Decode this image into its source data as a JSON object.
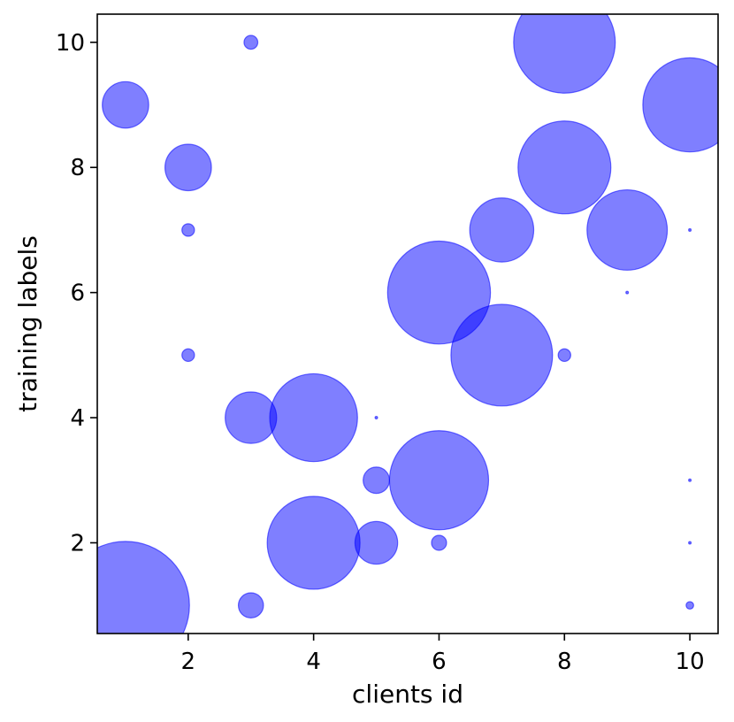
{
  "chart_data": {
    "type": "scatter",
    "xlabel": "clients id",
    "ylabel": "training labels",
    "xlim": [
      0.55,
      10.45
    ],
    "ylim": [
      0.55,
      10.45
    ],
    "xticks": [
      2,
      4,
      6,
      8,
      10
    ],
    "yticks": [
      2,
      4,
      6,
      8,
      10
    ],
    "grid": false,
    "marker_color": "#0000ff",
    "marker_alpha": 0.5,
    "points": [
      {
        "x": 1,
        "y": 1,
        "size": 102
      },
      {
        "x": 1,
        "y": 9,
        "size": 37
      },
      {
        "x": 2,
        "y": 8,
        "size": 37
      },
      {
        "x": 2,
        "y": 7,
        "size": 10
      },
      {
        "x": 2,
        "y": 5,
        "size": 10
      },
      {
        "x": 3,
        "y": 10,
        "size": 11
      },
      {
        "x": 3,
        "y": 4,
        "size": 41
      },
      {
        "x": 3,
        "y": 1,
        "size": 20
      },
      {
        "x": 4,
        "y": 4,
        "size": 70
      },
      {
        "x": 4,
        "y": 2,
        "size": 74
      },
      {
        "x": 5,
        "y": 4,
        "size": 2
      },
      {
        "x": 5,
        "y": 3,
        "size": 21
      },
      {
        "x": 5,
        "y": 2,
        "size": 34
      },
      {
        "x": 6,
        "y": 6,
        "size": 82
      },
      {
        "x": 6,
        "y": 3,
        "size": 79
      },
      {
        "x": 6,
        "y": 2,
        "size": 12
      },
      {
        "x": 7,
        "y": 7,
        "size": 51
      },
      {
        "x": 7,
        "y": 5,
        "size": 81
      },
      {
        "x": 8,
        "y": 10,
        "size": 81
      },
      {
        "x": 8,
        "y": 8,
        "size": 74
      },
      {
        "x": 8,
        "y": 5,
        "size": 10
      },
      {
        "x": 9,
        "y": 7,
        "size": 64
      },
      {
        "x": 9,
        "y": 6,
        "size": 2
      },
      {
        "x": 10,
        "y": 9,
        "size": 75
      },
      {
        "x": 10,
        "y": 7,
        "size": 2
      },
      {
        "x": 10,
        "y": 3,
        "size": 2
      },
      {
        "x": 10,
        "y": 2,
        "size": 2
      },
      {
        "x": 10,
        "y": 1,
        "size": 6
      }
    ]
  }
}
